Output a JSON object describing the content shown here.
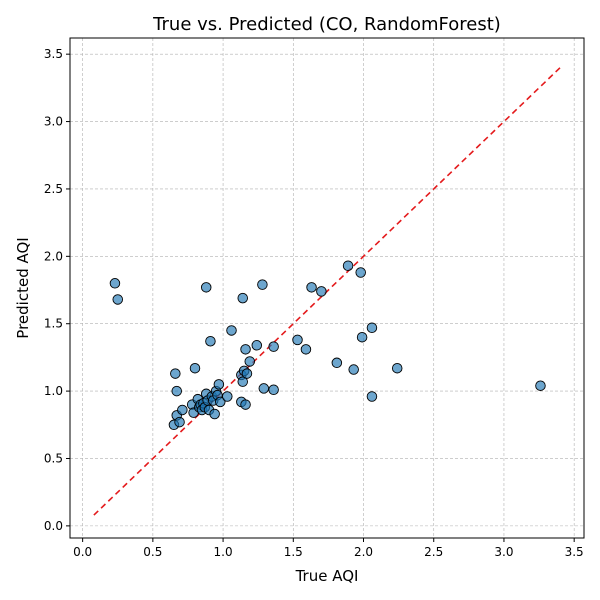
{
  "chart_data": {
    "type": "scatter",
    "title": "True vs. Predicted (CO, RandomForest)",
    "xlabel": "True AQI",
    "ylabel": "Predicted AQI",
    "xlim": [
      -0.09,
      3.57
    ],
    "ylim": [
      -0.09,
      3.62
    ],
    "xticks": [
      0.0,
      0.5,
      1.0,
      1.5,
      2.0,
      2.5,
      3.0,
      3.5
    ],
    "yticks": [
      0.0,
      0.5,
      1.0,
      1.5,
      2.0,
      2.5,
      3.0,
      3.5
    ],
    "grid": true,
    "colors": {
      "point": "#1f77b4",
      "edge": "#000000",
      "reference": "#e41a1c"
    },
    "reference_line": {
      "style": "dashed",
      "from": [
        0.08,
        0.08
      ],
      "to": [
        3.4,
        3.4
      ]
    },
    "points": [
      {
        "x": 0.23,
        "y": 1.8
      },
      {
        "x": 0.25,
        "y": 1.68
      },
      {
        "x": 0.65,
        "y": 0.75
      },
      {
        "x": 0.66,
        "y": 1.13
      },
      {
        "x": 0.67,
        "y": 1.0
      },
      {
        "x": 0.67,
        "y": 0.82
      },
      {
        "x": 0.69,
        "y": 0.77
      },
      {
        "x": 0.71,
        "y": 0.86
      },
      {
        "x": 0.78,
        "y": 0.9
      },
      {
        "x": 0.79,
        "y": 0.84
      },
      {
        "x": 0.8,
        "y": 1.17
      },
      {
        "x": 0.82,
        "y": 0.94
      },
      {
        "x": 0.83,
        "y": 0.88
      },
      {
        "x": 0.84,
        "y": 0.9
      },
      {
        "x": 0.85,
        "y": 0.86
      },
      {
        "x": 0.86,
        "y": 0.91
      },
      {
        "x": 0.87,
        "y": 0.88
      },
      {
        "x": 0.88,
        "y": 0.98
      },
      {
        "x": 0.88,
        "y": 1.77
      },
      {
        "x": 0.89,
        "y": 0.93
      },
      {
        "x": 0.9,
        "y": 0.86
      },
      {
        "x": 0.91,
        "y": 1.37
      },
      {
        "x": 0.92,
        "y": 0.96
      },
      {
        "x": 0.93,
        "y": 0.93
      },
      {
        "x": 0.94,
        "y": 0.83
      },
      {
        "x": 0.95,
        "y": 1.0
      },
      {
        "x": 0.96,
        "y": 0.97
      },
      {
        "x": 0.97,
        "y": 1.05
      },
      {
        "x": 0.98,
        "y": 0.92
      },
      {
        "x": 1.03,
        "y": 0.96
      },
      {
        "x": 1.06,
        "y": 1.45
      },
      {
        "x": 1.13,
        "y": 0.92
      },
      {
        "x": 1.13,
        "y": 1.12
      },
      {
        "x": 1.14,
        "y": 1.07
      },
      {
        "x": 1.14,
        "y": 1.69
      },
      {
        "x": 1.15,
        "y": 1.15
      },
      {
        "x": 1.16,
        "y": 0.9
      },
      {
        "x": 1.16,
        "y": 1.31
      },
      {
        "x": 1.17,
        "y": 1.13
      },
      {
        "x": 1.19,
        "y": 1.22
      },
      {
        "x": 1.24,
        "y": 1.34
      },
      {
        "x": 1.28,
        "y": 1.79
      },
      {
        "x": 1.29,
        "y": 1.02
      },
      {
        "x": 1.36,
        "y": 1.33
      },
      {
        "x": 1.36,
        "y": 1.01
      },
      {
        "x": 1.53,
        "y": 1.38
      },
      {
        "x": 1.59,
        "y": 1.31
      },
      {
        "x": 1.63,
        "y": 1.77
      },
      {
        "x": 1.7,
        "y": 1.74
      },
      {
        "x": 1.81,
        "y": 1.21
      },
      {
        "x": 1.89,
        "y": 1.93
      },
      {
        "x": 1.93,
        "y": 1.16
      },
      {
        "x": 1.98,
        "y": 1.88
      },
      {
        "x": 1.99,
        "y": 1.4
      },
      {
        "x": 2.06,
        "y": 1.47
      },
      {
        "x": 2.06,
        "y": 0.96
      },
      {
        "x": 2.24,
        "y": 1.17
      },
      {
        "x": 3.26,
        "y": 1.04
      }
    ]
  }
}
